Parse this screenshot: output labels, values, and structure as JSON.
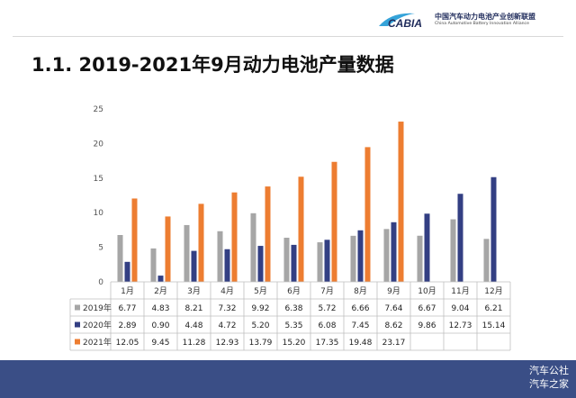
{
  "header": {
    "logo_text": "CABIA",
    "org_name_cn": "中国汽车动力电池产业创新联盟",
    "org_name_en": "China Automotive Battery Innovation Alliance"
  },
  "slide_title": "1.1.  2019-2021年9月动力电池产量数据",
  "chart_data": {
    "type": "bar",
    "categories": [
      "1月",
      "2月",
      "3月",
      "4月",
      "5月",
      "6月",
      "7月",
      "8月",
      "9月",
      "10月",
      "11月",
      "12月"
    ],
    "series": [
      {
        "name": "2019年",
        "color": "#a6a6a6",
        "values": [
          6.77,
          4.83,
          8.21,
          7.32,
          9.92,
          6.38,
          5.72,
          6.66,
          7.64,
          6.67,
          9.04,
          6.21
        ],
        "labels": [
          "6.77",
          "4.83",
          "8.21",
          "7.32",
          "9.92",
          "6.38",
          "5.72",
          "6.66",
          "7.64",
          "6.67",
          "9.04",
          "6.21"
        ]
      },
      {
        "name": "2020年",
        "color": "#333f83",
        "values": [
          2.89,
          0.9,
          4.48,
          4.72,
          5.2,
          5.35,
          6.08,
          7.45,
          8.62,
          9.86,
          12.73,
          15.14
        ],
        "labels": [
          "2.89",
          "0.90",
          "4.48",
          "4.72",
          "5.20",
          "5.35",
          "6.08",
          "7.45",
          "8.62",
          "9.86",
          "12.73",
          "15.14"
        ]
      },
      {
        "name": "2021年",
        "color": "#ed7d31",
        "values": [
          12.05,
          9.45,
          11.28,
          12.93,
          13.79,
          15.2,
          17.35,
          19.48,
          23.17,
          null,
          null,
          null
        ],
        "labels": [
          "12.05",
          "9.45",
          "11.28",
          "12.93",
          "13.79",
          "15.20",
          "17.35",
          "19.48",
          "23.17",
          "",
          "",
          ""
        ]
      }
    ],
    "ylim": [
      0,
      25
    ],
    "yticks": [
      "0",
      "5",
      "10",
      "15",
      "20",
      "25"
    ],
    "grid": false,
    "legend": "data-table"
  },
  "watermark": {
    "line1": "汽车公社",
    "line2": "汽车之家"
  }
}
